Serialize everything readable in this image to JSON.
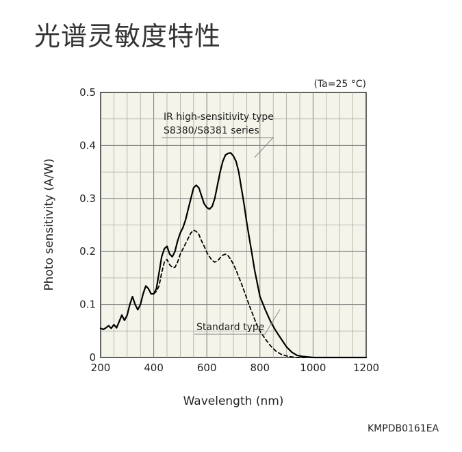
{
  "page": {
    "title": "光谱灵敏度特性",
    "doc_code": "KMPDB0161EA"
  },
  "chart_data": {
    "type": "line",
    "condition": "(Ta=25 °C)",
    "xlabel": "Wavelength (nm)",
    "ylabel": "Photo sensitivity (A/W)",
    "xlim": [
      200,
      1200
    ],
    "ylim": [
      0,
      0.5
    ],
    "xticks": [
      200,
      400,
      600,
      800,
      1000,
      1200
    ],
    "xtick_labels": [
      "200",
      "400",
      "600",
      "800",
      "1000",
      "1200"
    ],
    "yticks": [
      0,
      0.1,
      0.2,
      0.3,
      0.4,
      0.5
    ],
    "ytick_labels": [
      "0",
      "0.1",
      "0.2",
      "0.3",
      "0.4",
      "0.5"
    ],
    "grid": true,
    "series": [
      {
        "name": "IR high-sensitivity type S8380/S8381 series",
        "style": "solid",
        "x": [
          200,
          210,
          220,
          230,
          240,
          250,
          260,
          270,
          280,
          290,
          300,
          310,
          320,
          330,
          340,
          350,
          360,
          370,
          380,
          390,
          400,
          410,
          420,
          430,
          440,
          450,
          460,
          470,
          480,
          490,
          500,
          510,
          520,
          530,
          540,
          550,
          560,
          570,
          580,
          590,
          600,
          610,
          620,
          630,
          640,
          650,
          660,
          670,
          680,
          690,
          700,
          710,
          720,
          730,
          740,
          750,
          760,
          770,
          780,
          790,
          800,
          820,
          840,
          860,
          880,
          900,
          920,
          940,
          960,
          980,
          1000,
          1020,
          1040,
          1060,
          1080,
          1100,
          1120,
          1140,
          1160,
          1180,
          1200
        ],
        "y": [
          0.055,
          0.053,
          0.056,
          0.06,
          0.055,
          0.062,
          0.056,
          0.068,
          0.08,
          0.07,
          0.08,
          0.1,
          0.115,
          0.1,
          0.09,
          0.1,
          0.12,
          0.135,
          0.13,
          0.12,
          0.12,
          0.13,
          0.16,
          0.19,
          0.205,
          0.21,
          0.195,
          0.19,
          0.2,
          0.22,
          0.235,
          0.245,
          0.26,
          0.28,
          0.3,
          0.32,
          0.325,
          0.32,
          0.305,
          0.29,
          0.283,
          0.28,
          0.285,
          0.3,
          0.325,
          0.35,
          0.37,
          0.382,
          0.385,
          0.386,
          0.38,
          0.37,
          0.35,
          0.32,
          0.29,
          0.255,
          0.225,
          0.195,
          0.165,
          0.14,
          0.115,
          0.09,
          0.068,
          0.05,
          0.035,
          0.02,
          0.01,
          0.004,
          0.002,
          0.001,
          0.0,
          0.0,
          0.0,
          0.0,
          0.0,
          0.0,
          0.0,
          0.0,
          0.0,
          0.0,
          0.0
        ]
      },
      {
        "name": "Standard type",
        "style": "dashed",
        "x": [
          400,
          410,
          420,
          430,
          440,
          450,
          460,
          470,
          480,
          490,
          500,
          510,
          520,
          530,
          540,
          550,
          560,
          570,
          580,
          590,
          600,
          610,
          620,
          630,
          640,
          650,
          660,
          670,
          680,
          690,
          700,
          710,
          720,
          730,
          740,
          750,
          760,
          770,
          780,
          790,
          800,
          820,
          840,
          860,
          880,
          900,
          920,
          940,
          960,
          980,
          1000,
          1020,
          1040,
          1060,
          1080,
          1100,
          1120
        ],
        "y": [
          0.12,
          0.125,
          0.135,
          0.16,
          0.18,
          0.185,
          0.175,
          0.17,
          0.17,
          0.18,
          0.195,
          0.205,
          0.215,
          0.225,
          0.235,
          0.24,
          0.238,
          0.232,
          0.22,
          0.21,
          0.198,
          0.19,
          0.183,
          0.18,
          0.182,
          0.188,
          0.193,
          0.195,
          0.192,
          0.185,
          0.176,
          0.165,
          0.152,
          0.14,
          0.126,
          0.112,
          0.098,
          0.085,
          0.072,
          0.06,
          0.05,
          0.035,
          0.022,
          0.012,
          0.006,
          0.003,
          0.001,
          0.0,
          0.0,
          0.0,
          0.0,
          0.0,
          0.0,
          0.0,
          0.0,
          0.0,
          0.0
        ]
      }
    ]
  }
}
